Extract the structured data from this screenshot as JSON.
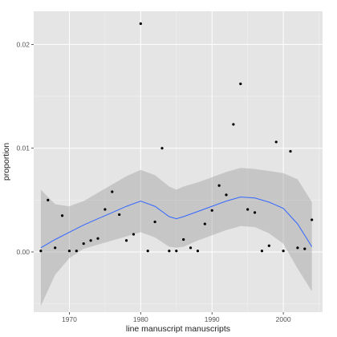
{
  "chart_data": {
    "type": "scatter",
    "title": "",
    "xlabel": "line manuscript manuscripts",
    "ylabel": "proportion",
    "xlim": [
      1965,
      2005.5
    ],
    "ylim": [
      -0.0058,
      0.0232
    ],
    "x_ticks": [
      1970,
      1980,
      1990,
      2000
    ],
    "x_tick_labels": [
      "1970",
      "1980",
      "1990",
      "2000"
    ],
    "y_ticks": [
      0.0,
      0.01,
      0.02
    ],
    "y_tick_labels": [
      "0.00",
      "0.01",
      "0.02"
    ],
    "grid": true,
    "colors": {
      "panel": "#e5e5e5",
      "grid_major": "#ffffff",
      "grid_minor": "#f2f2f2",
      "points": "#000000",
      "smooth_line": "#3366ff",
      "confidence_band": "#999999"
    },
    "points": {
      "x": [
        1966,
        1967,
        1968,
        1969,
        1970,
        1971,
        1972,
        1973,
        1974,
        1975,
        1976,
        1977,
        1978,
        1979,
        1980,
        1981,
        1982,
        1983,
        1984,
        1985,
        1986,
        1987,
        1988,
        1989,
        1990,
        1991,
        1992,
        1993,
        1994,
        1995,
        1996,
        1997,
        1998,
        1999,
        2000,
        2001,
        2002,
        2003,
        2004
      ],
      "y": [
        0.0001,
        0.005,
        0.0004,
        0.0035,
        0.0001,
        0.0001,
        0.0008,
        0.0011,
        0.0013,
        0.0041,
        0.0058,
        0.0036,
        0.0011,
        0.0017,
        0.022,
        0.0001,
        0.0029,
        0.01,
        0.0001,
        0.0001,
        0.0012,
        0.0004,
        0.0001,
        0.0027,
        0.004,
        0.0064,
        0.0055,
        0.0123,
        0.0162,
        0.0041,
        0.0038,
        0.0001,
        0.0006,
        0.0106,
        0.0001,
        0.0097,
        0.0004,
        0.0003,
        0.0031
      ]
    },
    "smooth": {
      "x": [
        1966,
        1968,
        1970,
        1972,
        1974,
        1976,
        1978,
        1980,
        1982,
        1984,
        1985,
        1986,
        1988,
        1990,
        1992,
        1994,
        1996,
        1998,
        2000,
        2002,
        2004
      ],
      "y": [
        0.0004,
        0.0012,
        0.0019,
        0.0026,
        0.0032,
        0.0038,
        0.0044,
        0.0049,
        0.0044,
        0.0034,
        0.0032,
        0.0034,
        0.0039,
        0.0044,
        0.0049,
        0.0053,
        0.0052,
        0.0048,
        0.0042,
        0.0027,
        0.0005
      ],
      "lower": [
        -0.0052,
        -0.0022,
        -0.0006,
        0.0003,
        0.0007,
        0.0011,
        0.0015,
        0.0019,
        0.0014,
        0.0005,
        0.0004,
        0.0005,
        0.0011,
        0.0016,
        0.0021,
        0.0025,
        0.0024,
        0.0018,
        0.0008,
        -0.0016,
        -0.0038
      ],
      "upper": [
        0.006,
        0.0046,
        0.0044,
        0.0049,
        0.0057,
        0.0065,
        0.0073,
        0.0079,
        0.0074,
        0.0063,
        0.006,
        0.0063,
        0.0067,
        0.0072,
        0.0077,
        0.0081,
        0.008,
        0.0078,
        0.0076,
        0.007,
        0.0048
      ]
    }
  }
}
